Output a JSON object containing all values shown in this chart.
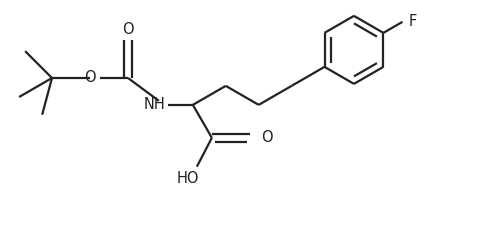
{
  "bg_color": "#ffffff",
  "line_color": "#222222",
  "line_width": 1.6,
  "font_size": 10.5,
  "fig_width": 5.0,
  "fig_height": 2.33,
  "dpi": 100,
  "xlim": [
    0,
    5.0
  ],
  "ylim": [
    0,
    2.33
  ]
}
